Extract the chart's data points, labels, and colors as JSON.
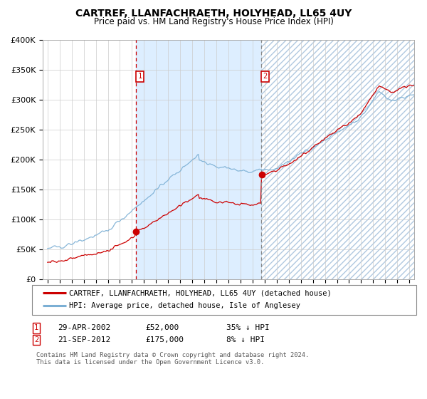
{
  "title": "CARTREF, LLANFACHRAETH, HOLYHEAD, LL65 4UY",
  "subtitle": "Price paid vs. HM Land Registry's House Price Index (HPI)",
  "legend_line1": "CARTREF, LLANFACHRAETH, HOLYHEAD, LL65 4UY (detached house)",
  "legend_line2": "HPI: Average price, detached house, Isle of Anglesey",
  "sale1_date": "29-APR-2002",
  "sale1_price": 52000,
  "sale1_label": "35% ↓ HPI",
  "sale2_date": "21-SEP-2012",
  "sale2_price": 175000,
  "sale2_label": "8% ↓ HPI",
  "footnote": "Contains HM Land Registry data © Crown copyright and database right 2024.\nThis data is licensed under the Open Government Licence v3.0.",
  "hpi_color": "#7bafd4",
  "price_color": "#cc0000",
  "span_color": "#ddeeff",
  "sale1_x": 2002.32,
  "sale2_x": 2012.72,
  "ylim_max": 400000,
  "xlim_min": 1994.6,
  "xlim_max": 2025.4,
  "yticks": [
    0,
    50000,
    100000,
    150000,
    200000,
    250000,
    300000,
    350000,
    400000
  ],
  "ylabels": [
    "£0",
    "£50K",
    "£100K",
    "£150K",
    "£200K",
    "£250K",
    "£300K",
    "£350K",
    "£400K"
  ]
}
